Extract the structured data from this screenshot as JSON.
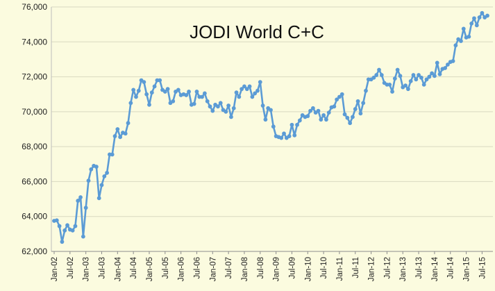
{
  "chart_data": {
    "type": "line",
    "title": "JODI World C+C",
    "xlabel": "",
    "ylabel": "",
    "ylim": [
      62000,
      76000
    ],
    "yticks": [
      62000,
      64000,
      66000,
      68000,
      70000,
      72000,
      74000,
      76000
    ],
    "ytick_labels": [
      "62,000",
      "64,000",
      "66,000",
      "68,000",
      "70,000",
      "72,000",
      "74,000",
      "76,000"
    ],
    "x_start": "Jan-02",
    "x_tick_labels": [
      "Jan-02",
      "Jul-02",
      "Jan-03",
      "Jul-03",
      "Jan-04",
      "Jul-04",
      "Jan-05",
      "Jul-05",
      "Jan-06",
      "Jul-06",
      "Jan-07",
      "Jul-07",
      "Jan-08",
      "Jul-08",
      "Jan-09",
      "Jul-09",
      "Jan-10",
      "Jul-10",
      "Jan-11",
      "Jul-11",
      "Jan-12",
      "Jul-12",
      "Jan-13",
      "Jul-13",
      "Jan-14",
      "Jul-14",
      "Jan-15",
      "Jul-15"
    ],
    "grid": true,
    "legend": "none",
    "line_color": "#5b9bd5",
    "series": [
      {
        "values": [
          63750,
          63780,
          63450,
          62550,
          63200,
          63500,
          63250,
          63200,
          63450,
          64900,
          65100,
          62850,
          64500,
          66050,
          66700,
          66900,
          66850,
          65050,
          65800,
          66300,
          66500,
          67550,
          67550,
          68600,
          69000,
          68550,
          68800,
          68750,
          69350,
          70500,
          71250,
          70850,
          71200,
          71800,
          71700,
          71000,
          70400,
          71100,
          71450,
          71800,
          71800,
          71250,
          71150,
          71300,
          70500,
          70600,
          71150,
          71250,
          70950,
          71000,
          70950,
          71150,
          70400,
          70450,
          71150,
          70850,
          70850,
          71050,
          70600,
          70300,
          70050,
          70400,
          70300,
          70500,
          70100,
          70000,
          70350,
          69700,
          70200,
          71100,
          70850,
          71300,
          71450,
          71300,
          71450,
          70850,
          71050,
          71200,
          71700,
          70350,
          69550,
          70200,
          70100,
          69150,
          68600,
          68550,
          68500,
          68750,
          68500,
          68600,
          69250,
          68650,
          69250,
          69500,
          69800,
          69700,
          69750,
          70050,
          70200,
          69950,
          70050,
          69550,
          69800,
          69550,
          69950,
          70250,
          70300,
          70700,
          70850,
          71000,
          69850,
          69650,
          69350,
          69700,
          70150,
          70600,
          69900,
          70500,
          71200,
          71850,
          71850,
          71950,
          72100,
          72400,
          72100,
          71650,
          71550,
          71550,
          71150,
          71900,
          72400,
          72050,
          71400,
          71500,
          71300,
          71750,
          72100,
          71850,
          72100,
          71950,
          71550,
          71850,
          72000,
          72200,
          72050,
          72800,
          72150,
          72450,
          72500,
          72700,
          72850,
          72900,
          73800,
          74150,
          74050,
          74750,
          74250,
          74300,
          75050,
          75350,
          74950,
          75400,
          75650,
          75400,
          75500
        ]
      }
    ]
  }
}
